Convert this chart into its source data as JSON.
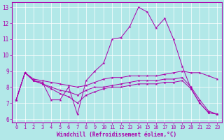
{
  "xlabel": "Windchill (Refroidissement éolien,°C)",
  "bg_color": "#b2e8e8",
  "line_color": "#aa00aa",
  "grid_color": "#ffffff",
  "xlim": [
    -0.5,
    23.5
  ],
  "ylim": [
    5.8,
    13.3
  ],
  "yticks": [
    6,
    7,
    8,
    9,
    10,
    11,
    12,
    13
  ],
  "xticks": [
    0,
    1,
    2,
    3,
    4,
    5,
    6,
    7,
    8,
    9,
    10,
    11,
    12,
    13,
    14,
    15,
    16,
    17,
    18,
    19,
    20,
    21,
    22,
    23
  ],
  "line1_y": [
    7.2,
    8.9,
    8.4,
    8.3,
    7.2,
    7.2,
    8.0,
    6.3,
    8.4,
    9.0,
    9.5,
    11.0,
    11.1,
    11.8,
    13.0,
    12.7,
    11.7,
    12.3,
    11.0,
    9.3,
    7.9,
    7.0,
    6.4,
    6.3
  ],
  "line2_y": [
    7.2,
    8.9,
    8.5,
    8.4,
    8.3,
    8.2,
    8.1,
    8.0,
    8.1,
    8.3,
    8.5,
    8.6,
    8.6,
    8.7,
    8.7,
    8.7,
    8.7,
    8.8,
    8.9,
    9.0,
    8.9,
    8.9,
    8.7,
    8.5
  ],
  "line3_y": [
    7.2,
    8.9,
    8.4,
    8.2,
    8.0,
    7.8,
    7.7,
    7.5,
    7.8,
    8.0,
    8.0,
    8.1,
    8.2,
    8.3,
    8.4,
    8.4,
    8.4,
    8.5,
    8.5,
    8.6,
    8.0,
    7.2,
    6.5,
    6.3
  ],
  "line4_y": [
    7.2,
    8.9,
    8.4,
    8.2,
    7.9,
    7.6,
    7.4,
    7.0,
    7.5,
    7.7,
    7.9,
    8.0,
    8.0,
    8.1,
    8.2,
    8.2,
    8.2,
    8.3,
    8.3,
    8.4,
    7.9,
    7.0,
    6.4,
    6.3
  ]
}
